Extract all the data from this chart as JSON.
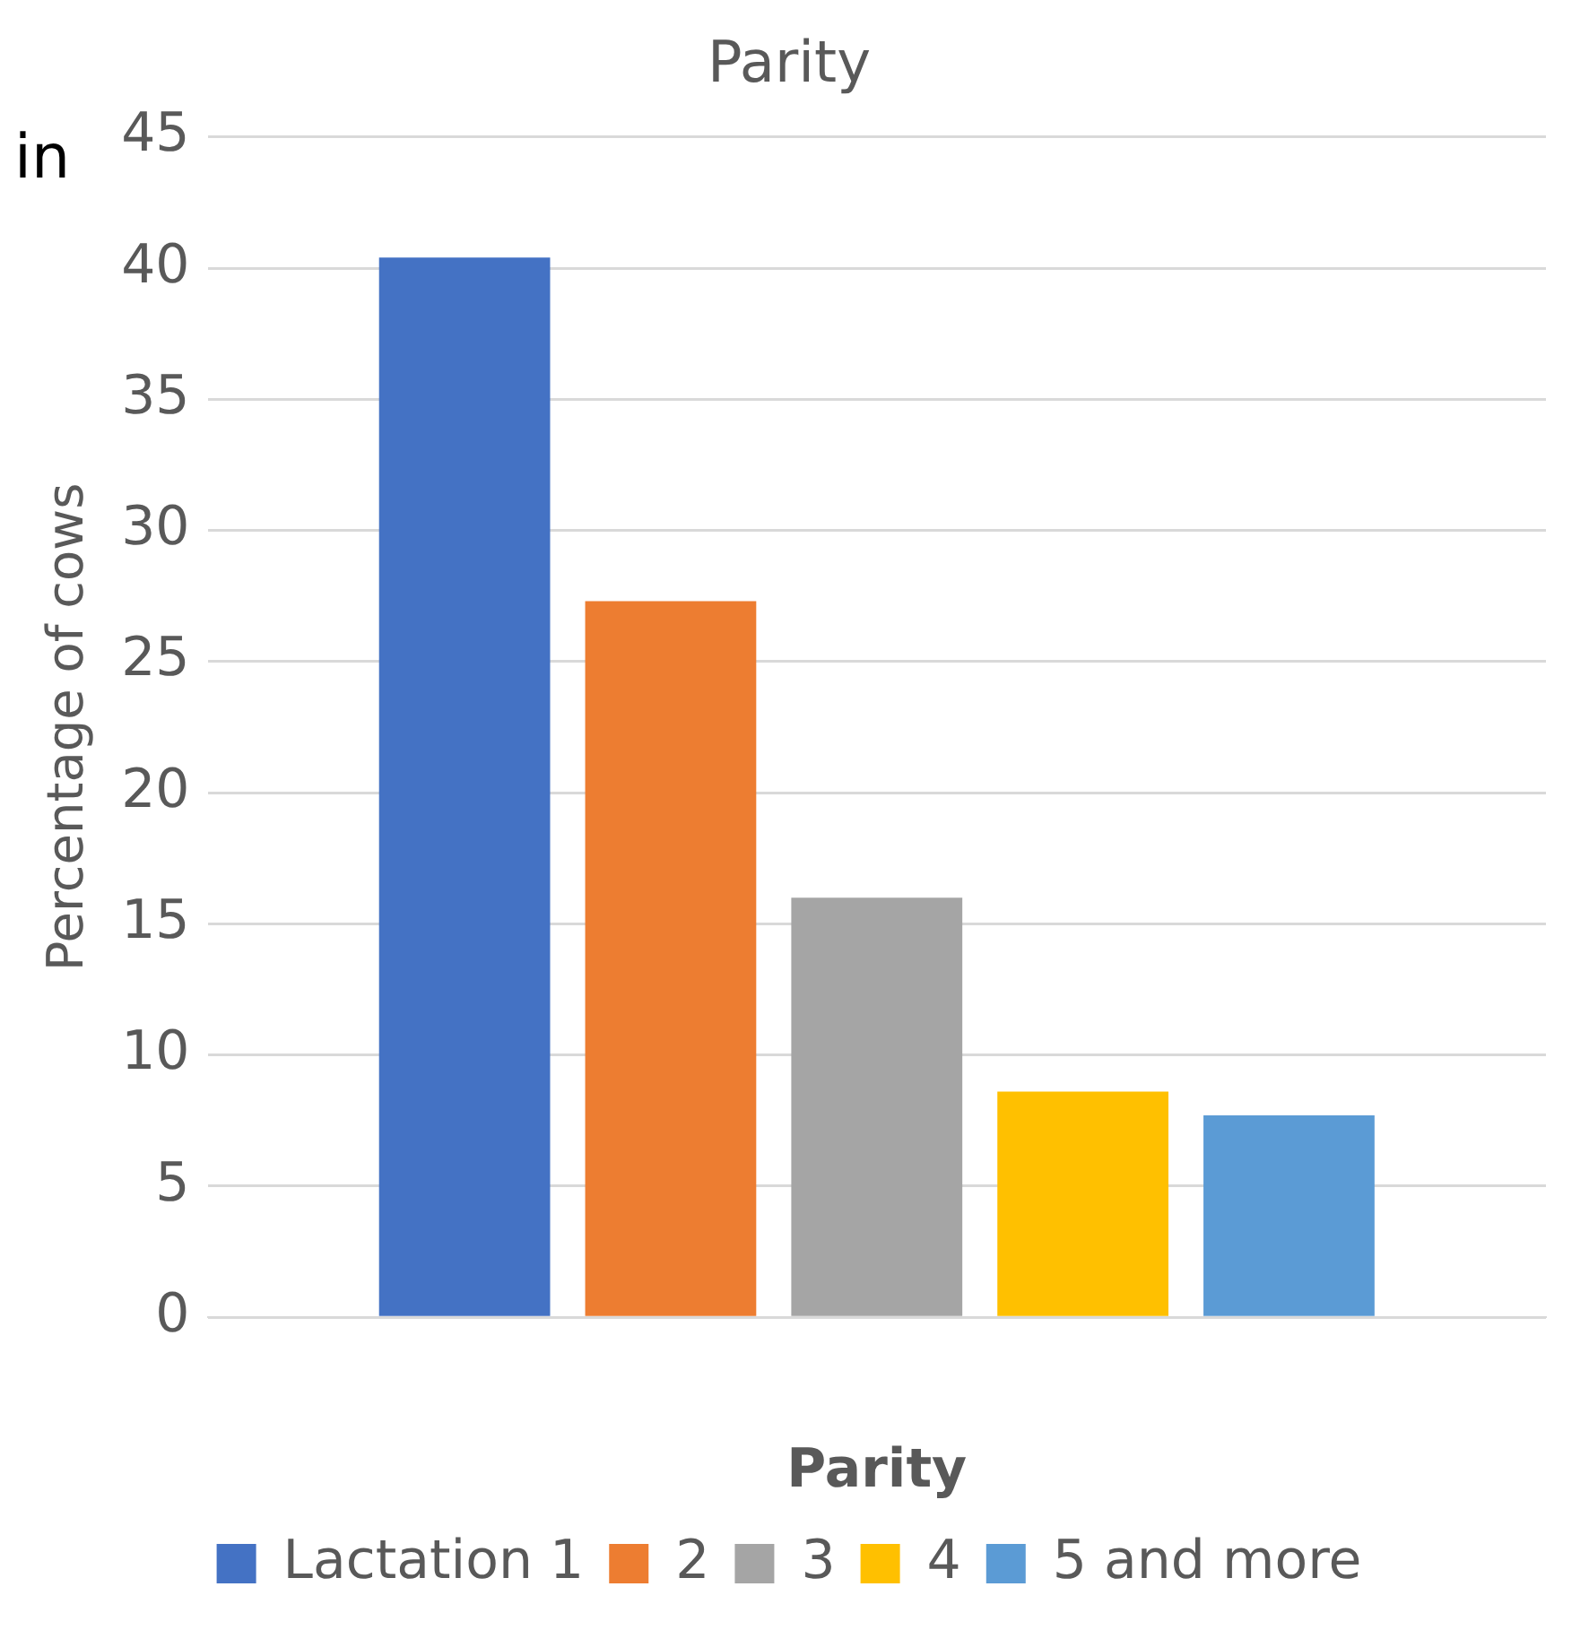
{
  "chart_data": {
    "type": "bar",
    "title": "Parity",
    "xlabel": "Parity",
    "ylabel": "Percentage of cows",
    "annotations": [
      "in"
    ],
    "categories": [
      null
    ],
    "series": [
      {
        "name": "Lactation 1",
        "color": "#4472c4",
        "values": [
          40.4
        ]
      },
      {
        "name": "2",
        "color": "#ed7d31",
        "values": [
          27.3
        ]
      },
      {
        "name": "3",
        "color": "#a5a5a5",
        "values": [
          16.0
        ]
      },
      {
        "name": "4",
        "color": "#ffc000",
        "values": [
          8.6
        ]
      },
      {
        "name": "5 and more",
        "color": "#5b9bd5",
        "values": [
          7.7
        ]
      }
    ],
    "ylim": [
      0,
      45
    ],
    "yticks": [
      0,
      5,
      10,
      15,
      20,
      25,
      30,
      35,
      40,
      45
    ],
    "grid": "y",
    "legend": "bottom"
  }
}
